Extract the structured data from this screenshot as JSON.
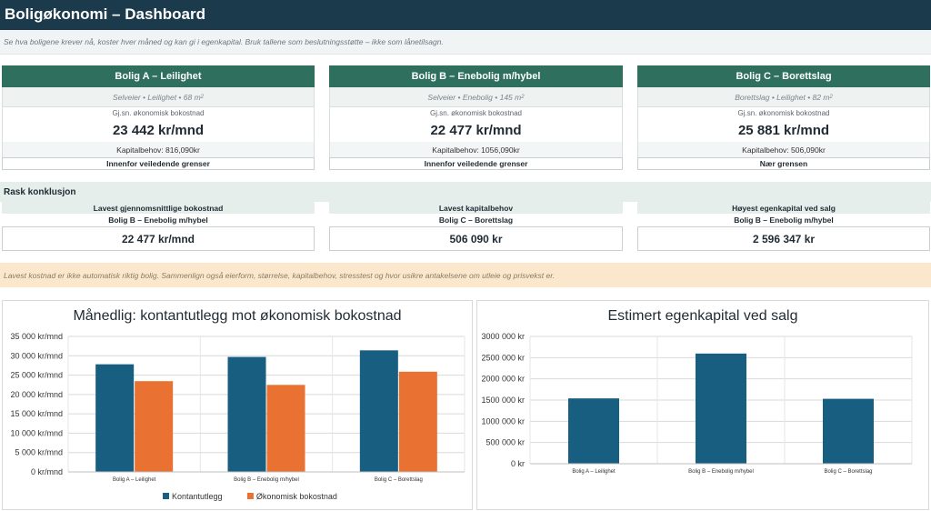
{
  "header": {
    "title": "Boligøkonomi – Dashboard",
    "subtitle": "Se hva boligene krever nå, koster hver måned og kan gi i egenkapital. Bruk tallene som beslutningsstøtte – ikke som lånetilsagn."
  },
  "cards": [
    {
      "title": "Bolig A – Leilighet",
      "meta": "Selveier • Leilighet • 68 m",
      "meta_sup": "2",
      "cost_label": "Gj.sn. økonomisk bokostnad",
      "cost_value": "23 442 kr/mnd",
      "capital": "Kapitalbehov: 816,090kr",
      "status": "Innenfor veiledende grenser"
    },
    {
      "title": "Bolig B – Enebolig m/hybel",
      "meta": "Selveier • Enebolig • 145 m",
      "meta_sup": "2",
      "cost_label": "Gj.sn. økonomisk bokostnad",
      "cost_value": "22 477 kr/mnd",
      "capital": "Kapitalbehov: 1056,090kr",
      "status": "Innenfor veiledende grenser"
    },
    {
      "title": "Bolig C – Borettslag",
      "meta": "Borettslag • Leilighet • 82 m",
      "meta_sup": "2",
      "cost_label": "Gj.sn. økonomisk bokostnad",
      "cost_value": "25 881 kr/mnd",
      "capital": "Kapitalbehov: 506,090kr",
      "status": "Nær grensen"
    }
  ],
  "conclusion": {
    "heading": "Rask konklusjon",
    "items": [
      {
        "title": "Lavest gjennomsnittlige bokostnad",
        "name": "Bolig B – Enebolig m/hybel",
        "value": "22 477 kr/mnd"
      },
      {
        "title": "Lavest kapitalbehov",
        "name": "Bolig C – Borettslag",
        "value": "506 090 kr"
      },
      {
        "title": "Høyest egenkapital ved salg",
        "name": "Bolig B – Enebolig m/hybel",
        "value": "2 596 347 kr"
      }
    ]
  },
  "note": "Lavest kostnad er ikke automatisk riktig bolig. Sammenlign også eierform, størrelse, kapitalbehov, stresstest og hvor usikre antakelsene om utleie og prisvekst er.",
  "chart_data": [
    {
      "type": "bar",
      "title": "Månedlig: kontantutlegg mot økonomisk bokostnad",
      "categories": [
        "Bolig A – Leilighet",
        "Bolig B – Enebolig m/hybel",
        "Bolig C – Borettslag"
      ],
      "series": [
        {
          "name": "Kontantutlegg",
          "values": [
            27800,
            29700,
            31400
          ],
          "color": "#175e81"
        },
        {
          "name": "Økonomisk bokostnad",
          "values": [
            23442,
            22477,
            25881
          ],
          "color": "#e97132"
        }
      ],
      "ylim": [
        0,
        35000
      ],
      "yticks": [
        0,
        5000,
        10000,
        15000,
        20000,
        25000,
        30000,
        35000
      ],
      "ytick_labels": [
        "0 kr/mnd",
        "5 000 kr/mnd",
        "10 000 kr/mnd",
        "15 000 kr/mnd",
        "20 000 kr/mnd",
        "25 000 kr/mnd",
        "30 000 kr/mnd",
        "35 000 kr/mnd"
      ],
      "grid": true,
      "legend": "bottom"
    },
    {
      "type": "bar",
      "title": "Estimert egenkapital ved salg",
      "categories": [
        "Bolig A – Leilighet",
        "Bolig B – Enebolig m/hybel",
        "Bolig C – Borettslag"
      ],
      "series": [
        {
          "values": [
            1540000,
            2596347,
            1530000
          ],
          "color": "#175e81"
        }
      ],
      "ylim": [
        0,
        3000000
      ],
      "yticks": [
        0,
        500000,
        1000000,
        1500000,
        2000000,
        2500000,
        3000000
      ],
      "ytick_labels": [
        "0 kr",
        "500 000 kr",
        "1000 000 kr",
        "1500 000 kr",
        "2000 000 kr",
        "2500 000 kr",
        "3000 000 kr"
      ],
      "grid": true
    }
  ]
}
